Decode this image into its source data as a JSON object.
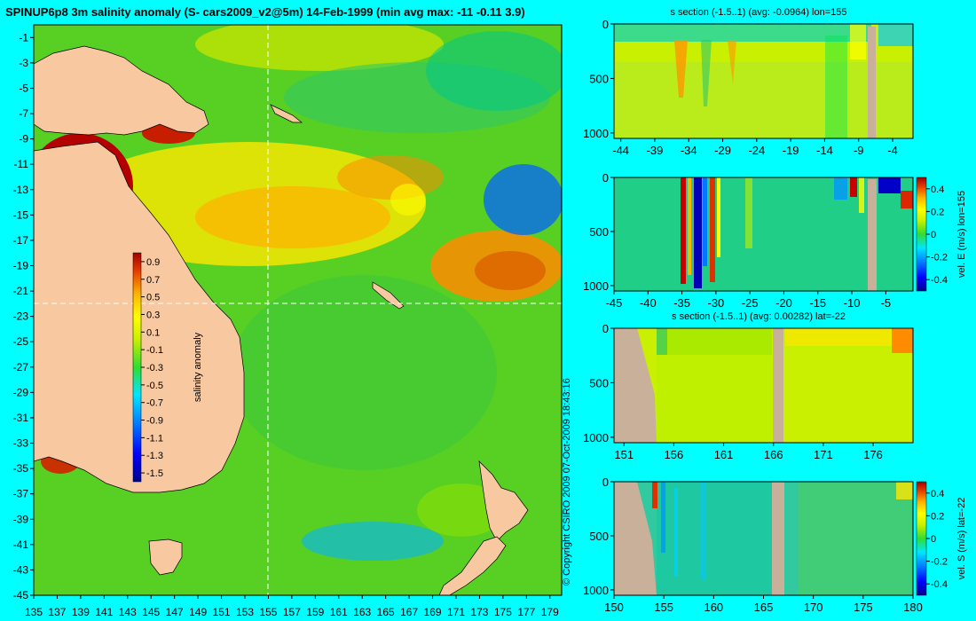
{
  "main_title": "SPINUP6p8 3m salinity anomaly (S- cars2009_v2@5m) 14-Feb-1999 (min avg max: -11 -0.11 3.9)",
  "copyright": "© Copyright CSIRO 2009   07-Oct-2009 18:43:16",
  "colors": {
    "background": "#00ffff",
    "land": "#f8c8a0",
    "section_land": "#c8b09a",
    "crosshair": "#ffffff"
  },
  "colormap": [
    "#00008c",
    "#0000ff",
    "#0064ff",
    "#00c8ff",
    "#00ff96",
    "#32d232",
    "#96e600",
    "#ffff00",
    "#ffc800",
    "#ff8c00",
    "#dc3c00",
    "#a00000"
  ],
  "chart_data": [
    {
      "id": "map",
      "type": "heatmap",
      "title": "SPINUP6p8 3m salinity anomaly (S- cars2009_v2@5m) 14-Feb-1999 (min avg max: -11 -0.11 3.9)",
      "xlim": [
        135,
        180
      ],
      "ylim": [
        -45,
        0
      ],
      "x_ticks": [
        135,
        137,
        139,
        141,
        143,
        145,
        147,
        149,
        151,
        153,
        155,
        157,
        159,
        161,
        163,
        165,
        167,
        169,
        171,
        173,
        175,
        177,
        179
      ],
      "y_ticks": [
        -1,
        -3,
        -5,
        -7,
        -9,
        -11,
        -13,
        -15,
        -17,
        -19,
        -21,
        -23,
        -25,
        -27,
        -29,
        -31,
        -33,
        -35,
        -37,
        -39,
        -41,
        -43,
        -45
      ],
      "crosshair": {
        "lon": 155,
        "lat": -22
      },
      "colorbar": {
        "label": "salinity anomaly",
        "ticks": [
          "0.9",
          "0.7",
          "0.5",
          "0.3",
          "0.1",
          "-0.1",
          "-0.3",
          "-0.5",
          "-0.7",
          "-0.9",
          "-1.1",
          "-1.3",
          "-1.5"
        ],
        "range": [
          -1.6,
          1.0
        ]
      }
    },
    {
      "id": "section-lon155",
      "type": "heatmap",
      "title": "s section (-1.5..1) (avg: -0.0964) lon=155",
      "x_ticks": [
        "-44",
        "-39",
        "-34",
        "-29",
        "-24",
        "-19",
        "-14",
        "-9",
        "-4"
      ],
      "y_ticks": [
        "0",
        "500",
        "1000"
      ],
      "xlim": [
        -45,
        -1
      ],
      "ylim": [
        1050,
        0
      ]
    },
    {
      "id": "vel-e-lon155",
      "type": "heatmap",
      "x_ticks": [
        "-45",
        "-40",
        "-35",
        "-30",
        "-25",
        "-20",
        "-15",
        "-10",
        "-5"
      ],
      "y_ticks": [
        "0",
        "500",
        "1000"
      ],
      "xlim": [
        -45,
        -1
      ],
      "ylim": [
        1050,
        0
      ],
      "colorbar": {
        "label": "vel. E (m/s) lon=155",
        "ticks": [
          "0.4",
          "0.2",
          "0",
          "-0.2",
          "-0.4"
        ]
      }
    },
    {
      "id": "section-lat22",
      "type": "heatmap",
      "title": "s section (-1.5..1) (avg: 0.00282) lat=-22",
      "x_ticks": [
        "151",
        "156",
        "161",
        "166",
        "171",
        "176"
      ],
      "y_ticks": [
        "0",
        "500",
        "1000"
      ],
      "xlim": [
        150,
        180
      ],
      "ylim": [
        1050,
        0
      ]
    },
    {
      "id": "vel-s-lat22",
      "type": "heatmap",
      "x_ticks": [
        "150",
        "155",
        "160",
        "165",
        "170",
        "175",
        "180"
      ],
      "y_ticks": [
        "0",
        "500",
        "1000"
      ],
      "xlim": [
        150,
        180
      ],
      "ylim": [
        1050,
        0
      ],
      "colorbar": {
        "label": "vel. S (m/s) lat=-22",
        "ticks": [
          "0.4",
          "0.2",
          "0",
          "-0.2",
          "-0.4"
        ]
      }
    }
  ]
}
